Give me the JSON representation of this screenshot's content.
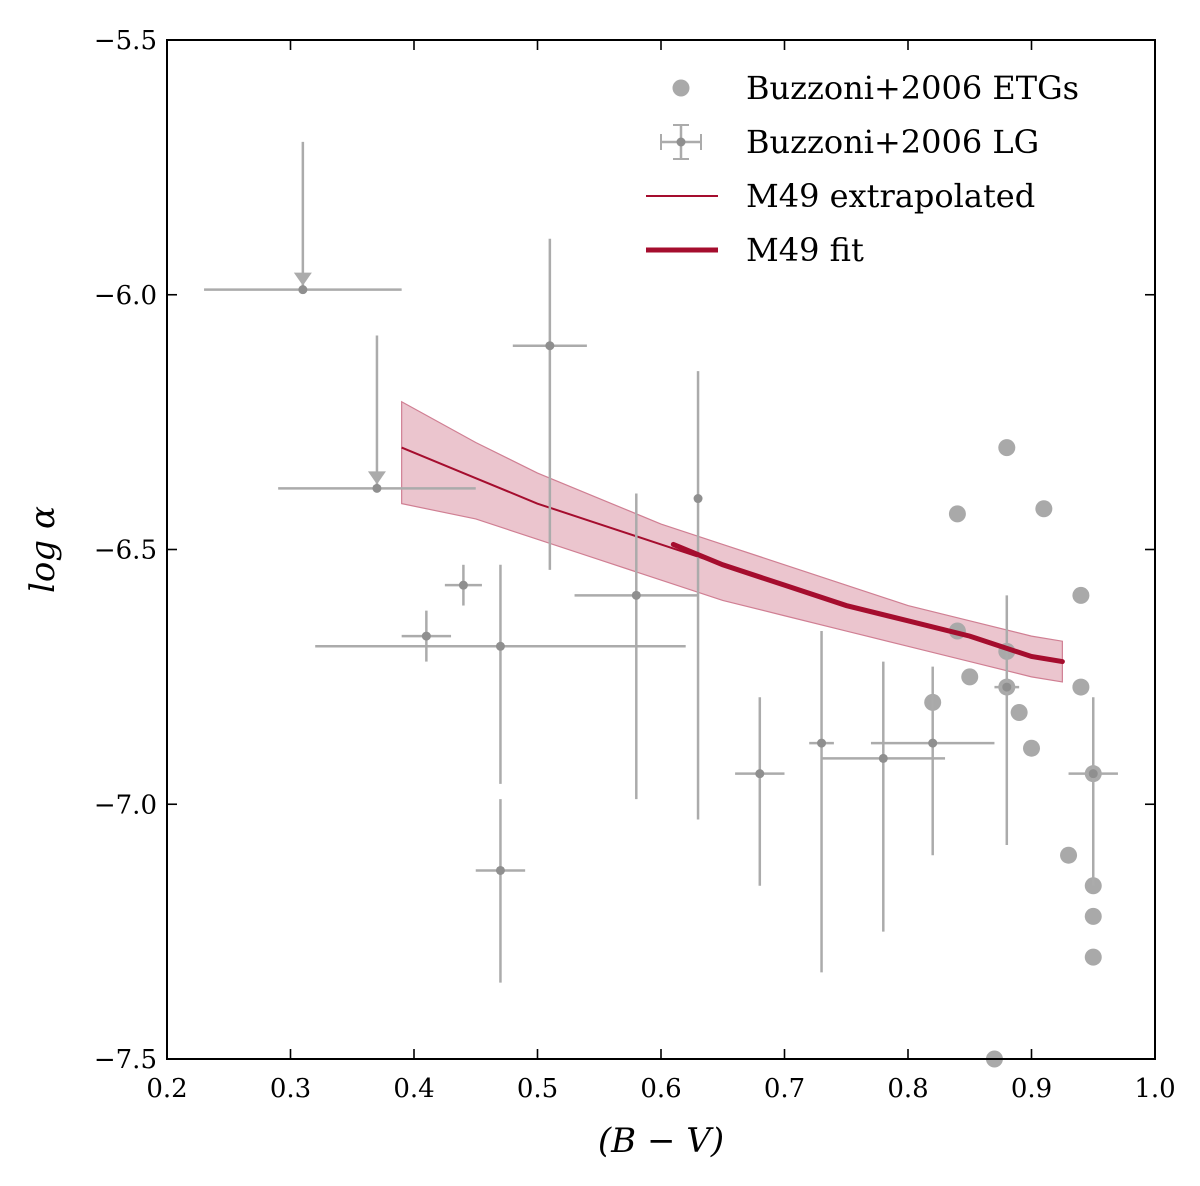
{
  "chart_data": {
    "type": "scatter",
    "title": "",
    "xlabel": "(B − V)",
    "ylabel": "log α",
    "xlim": [
      0.2,
      1.0
    ],
    "ylim": [
      -7.5,
      -5.5
    ],
    "xticks": [
      0.2,
      0.3,
      0.4,
      0.5,
      0.6,
      0.7,
      0.8,
      0.9,
      1.0
    ],
    "xtick_labels": [
      "0.2",
      "0.3",
      "0.4",
      "0.5",
      "0.6",
      "0.7",
      "0.8",
      "0.9",
      "1.0"
    ],
    "yticks": [
      -7.5,
      -7.0,
      -6.5,
      -6.0,
      -5.5
    ],
    "ytick_labels": [
      "−7.5",
      "−7.0",
      "−6.5",
      "−6.0",
      "−5.5"
    ],
    "grid": false,
    "legend_position": "top-right",
    "colors": {
      "etg": "#a9a9a9",
      "lg": "#8f8f8f",
      "lg_bar": "#ababab",
      "fit": "#a50d2e",
      "band": "#e0a6b3",
      "band_edge": "#d07f93"
    },
    "legend": [
      {
        "label": "Buzzoni+2006 ETGs",
        "kind": "marker"
      },
      {
        "label": "Buzzoni+2006 LG",
        "kind": "errorbar"
      },
      {
        "label": "M49 extrapolated",
        "kind": "thin-line"
      },
      {
        "label": "M49 fit",
        "kind": "thick-line"
      }
    ],
    "series": [
      {
        "name": "Buzzoni+2006 ETGs",
        "type": "scatter",
        "points": [
          {
            "x": 0.88,
            "y": -6.3
          },
          {
            "x": 0.84,
            "y": -6.43
          },
          {
            "x": 0.91,
            "y": -6.42
          },
          {
            "x": 0.94,
            "y": -6.59
          },
          {
            "x": 0.84,
            "y": -6.66
          },
          {
            "x": 0.88,
            "y": -6.7
          },
          {
            "x": 0.85,
            "y": -6.75
          },
          {
            "x": 0.88,
            "y": -6.77
          },
          {
            "x": 0.94,
            "y": -6.77
          },
          {
            "x": 0.82,
            "y": -6.8
          },
          {
            "x": 0.89,
            "y": -6.82
          },
          {
            "x": 0.9,
            "y": -6.89
          },
          {
            "x": 0.95,
            "y": -6.94
          },
          {
            "x": 0.93,
            "y": -7.1
          },
          {
            "x": 0.95,
            "y": -7.16
          },
          {
            "x": 0.95,
            "y": -7.22
          },
          {
            "x": 0.95,
            "y": -7.3
          },
          {
            "x": 0.87,
            "y": -7.5
          }
        ]
      },
      {
        "name": "Buzzoni+2006 LG",
        "type": "errorbar",
        "points": [
          {
            "x": 0.31,
            "y": -5.99,
            "xerr": 0.08,
            "ylo": -5.99,
            "yhi": -5.7,
            "upper_limit": true
          },
          {
            "x": 0.37,
            "y": -6.38,
            "xerr": 0.08,
            "ylo": -6.38,
            "yhi": -6.08,
            "upper_limit": true
          },
          {
            "x": 0.41,
            "y": -6.67,
            "xerr": 0.02,
            "ylo": -6.72,
            "yhi": -6.62
          },
          {
            "x": 0.44,
            "y": -6.57,
            "xerr": 0.015,
            "ylo": -6.61,
            "yhi": -6.53
          },
          {
            "x": 0.47,
            "y": -6.69,
            "xerr": 0.15,
            "ylo": -6.96,
            "yhi": -6.53
          },
          {
            "x": 0.47,
            "y": -7.13,
            "xerr": 0.02,
            "ylo": -7.35,
            "yhi": -6.99
          },
          {
            "x": 0.51,
            "y": -6.1,
            "xerr": 0.03,
            "ylo": -6.54,
            "yhi": -5.89
          },
          {
            "x": 0.58,
            "y": -6.59,
            "xerr": 0.05,
            "ylo": -6.99,
            "yhi": -6.39
          },
          {
            "x": 0.63,
            "y": -6.4,
            "xerr": 0.0,
            "ylo": -7.03,
            "yhi": -6.15
          },
          {
            "x": 0.68,
            "y": -6.94,
            "xerr": 0.02,
            "ylo": -7.16,
            "yhi": -6.79
          },
          {
            "x": 0.73,
            "y": -6.88,
            "xerr": 0.01,
            "ylo": -7.33,
            "yhi": -6.66
          },
          {
            "x": 0.78,
            "y": -6.91,
            "xerr": 0.05,
            "ylo": -7.25,
            "yhi": -6.72
          },
          {
            "x": 0.82,
            "y": -6.88,
            "xerr": 0.05,
            "ylo": -7.1,
            "yhi": -6.73
          },
          {
            "x": 0.88,
            "y": -6.77,
            "xerr": 0.01,
            "ylo": -7.08,
            "yhi": -6.59
          },
          {
            "x": 0.95,
            "y": -6.94,
            "xerr": 0.02,
            "ylo": -7.16,
            "yhi": -6.79
          }
        ]
      },
      {
        "name": "M49 extrapolated",
        "type": "line",
        "x": [
          0.39,
          0.45,
          0.5,
          0.55,
          0.6,
          0.65,
          0.7,
          0.75,
          0.8,
          0.85,
          0.9,
          0.925
        ],
        "y": [
          -6.3,
          -6.36,
          -6.41,
          -6.45,
          -6.49,
          -6.53,
          -6.57,
          -6.61,
          -6.64,
          -6.67,
          -6.71,
          -6.72
        ]
      },
      {
        "name": "M49 fit",
        "type": "line",
        "x": [
          0.61,
          0.65,
          0.7,
          0.75,
          0.8,
          0.85,
          0.9,
          0.925
        ],
        "y": [
          -6.49,
          -6.53,
          -6.57,
          -6.61,
          -6.64,
          -6.67,
          -6.71,
          -6.72
        ]
      },
      {
        "name": "M49 uncertainty band",
        "type": "area",
        "x": [
          0.39,
          0.45,
          0.5,
          0.55,
          0.6,
          0.65,
          0.7,
          0.75,
          0.8,
          0.85,
          0.9,
          0.925
        ],
        "upper": [
          -6.21,
          -6.29,
          -6.35,
          -6.4,
          -6.45,
          -6.49,
          -6.53,
          -6.57,
          -6.61,
          -6.64,
          -6.67,
          -6.68
        ],
        "lower": [
          -6.41,
          -6.44,
          -6.48,
          -6.52,
          -6.56,
          -6.6,
          -6.63,
          -6.66,
          -6.69,
          -6.72,
          -6.75,
          -6.76
        ]
      }
    ]
  }
}
